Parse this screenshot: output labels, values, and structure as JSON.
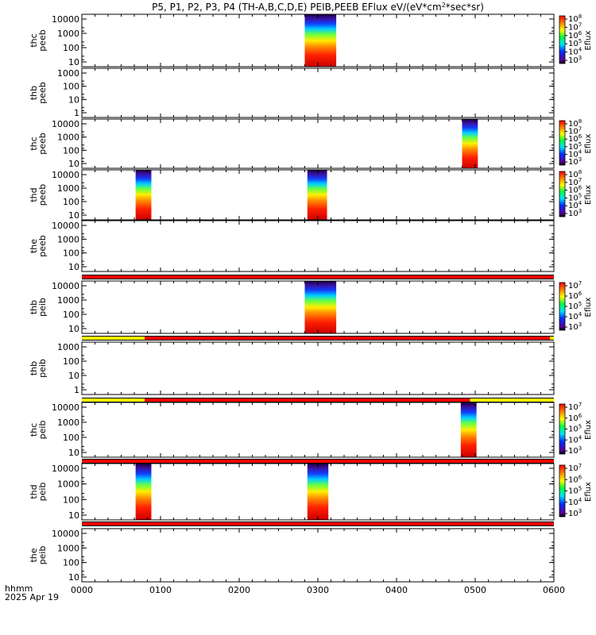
{
  "title_parts": [
    "P5, P1, P2, P3, P4 (TH-A,B,C,D,E) PEIB,PEEB EFlux eV/(eV*cm",
    "2",
    "*sec*sr)"
  ],
  "footer": {
    "time_label": "hhmm",
    "date_label": "2025 Apr 19"
  },
  "x_axis": {
    "ticks": [
      "0000",
      "0100",
      "0200",
      "0300",
      "0400",
      "0500",
      "0600"
    ],
    "range_minutes": [
      0,
      360
    ]
  },
  "colors": {
    "red": "#ff0000",
    "yellow": "#ffff00",
    "black": "#000000"
  },
  "chart_data": [
    {
      "type": "heatmap",
      "ylabel": [
        "thc",
        "peeb"
      ],
      "yticks": [
        "10000",
        "1000",
        "100",
        "10"
      ],
      "data_blocks": [
        [
          170,
          194
        ]
      ],
      "colorbar": {
        "label": "Eflux",
        "ticks": [
          "10^8",
          "10^7",
          "10^6",
          "10^5",
          "10^4",
          "10^3"
        ]
      }
    },
    {
      "type": "heatmap",
      "ylabel": [
        "thb",
        "peeb"
      ],
      "yticks": [
        "1000",
        "100",
        "10",
        "1"
      ],
      "data_blocks": []
    },
    {
      "type": "heatmap",
      "ylabel": [
        "thc",
        "peeb"
      ],
      "yticks": [
        "10000",
        "1000",
        "100",
        "10"
      ],
      "data_blocks": [
        [
          290,
          302
        ]
      ],
      "colorbar": {
        "label": "Eflux",
        "ticks": [
          "10^8",
          "10^7",
          "10^6",
          "10^5",
          "10^4",
          "10^3"
        ]
      }
    },
    {
      "type": "heatmap",
      "ylabel": [
        "thd",
        "peeb"
      ],
      "yticks": [
        "10000",
        "1000",
        "100",
        "10"
      ],
      "data_blocks": [
        [
          41,
          53
        ],
        [
          172,
          187
        ]
      ],
      "colorbar": {
        "label": "Eflux",
        "ticks": [
          "10^8",
          "10^7",
          "10^6",
          "10^5",
          "10^4",
          "10^3"
        ]
      }
    },
    {
      "type": "heatmap",
      "ylabel": [
        "the",
        "peeb"
      ],
      "yticks": [
        "10000",
        "1000",
        "100",
        "10"
      ],
      "data_blocks": []
    },
    {
      "type": "heatmap",
      "ylabel": [
        "thb",
        "peib"
      ],
      "yticks": [
        "10000",
        "1000",
        "100",
        "10"
      ],
      "data_blocks": [
        [
          170,
          194
        ]
      ],
      "colorbar": {
        "label": "Eflux",
        "ticks": [
          "10^7",
          "10^6",
          "10^5",
          "10^4",
          "10^3"
        ]
      }
    },
    {
      "type": "heatmap",
      "ylabel": [
        "thb",
        "peib"
      ],
      "yticks": [
        "1000",
        "100",
        "10",
        "1"
      ],
      "data_blocks": []
    },
    {
      "type": "heatmap",
      "ylabel": [
        "thc",
        "peib"
      ],
      "yticks": [
        "10000",
        "1000",
        "100",
        "10"
      ],
      "data_blocks": [
        [
          289,
          301
        ]
      ],
      "colorbar": {
        "label": "Eflux",
        "ticks": [
          "10^7",
          "10^6",
          "10^5",
          "10^4",
          "10^3"
        ]
      }
    },
    {
      "type": "heatmap",
      "ylabel": [
        "thd",
        "peib"
      ],
      "yticks": [
        "10000",
        "1000",
        "100",
        "10"
      ],
      "data_blocks": [
        [
          41,
          53
        ],
        [
          172,
          188
        ]
      ],
      "colorbar": {
        "label": "Eflux",
        "ticks": [
          "10^7",
          "10^6",
          "10^5",
          "10^4",
          "10^3"
        ]
      }
    },
    {
      "type": "heatmap",
      "ylabel": [
        "the",
        "peib"
      ],
      "yticks": [
        "10000",
        "1000",
        "100",
        "10"
      ],
      "data_blocks": []
    }
  ],
  "status_bars": [
    {
      "after_panel": 4,
      "segments": [
        {
          "from": 0,
          "to": 360,
          "color": "red"
        }
      ]
    },
    {
      "after_panel": 5,
      "segments": [
        {
          "from": 0,
          "to": 48,
          "color": "yellow"
        },
        {
          "from": 48,
          "to": 357,
          "color": "red"
        },
        {
          "from": 357,
          "to": 360,
          "color": "yellow"
        }
      ]
    },
    {
      "after_panel": 6,
      "segments": [
        {
          "from": 0,
          "to": 48,
          "color": "yellow"
        },
        {
          "from": 48,
          "to": 296,
          "color": "red"
        },
        {
          "from": 296,
          "to": 360,
          "color": "yellow"
        }
      ]
    },
    {
      "after_panel": 7,
      "segments": [
        {
          "from": 0,
          "to": 360,
          "color": "red"
        }
      ]
    },
    {
      "after_panel": 8,
      "segments": [
        {
          "from": 0,
          "to": 360,
          "color": "red"
        }
      ]
    }
  ]
}
